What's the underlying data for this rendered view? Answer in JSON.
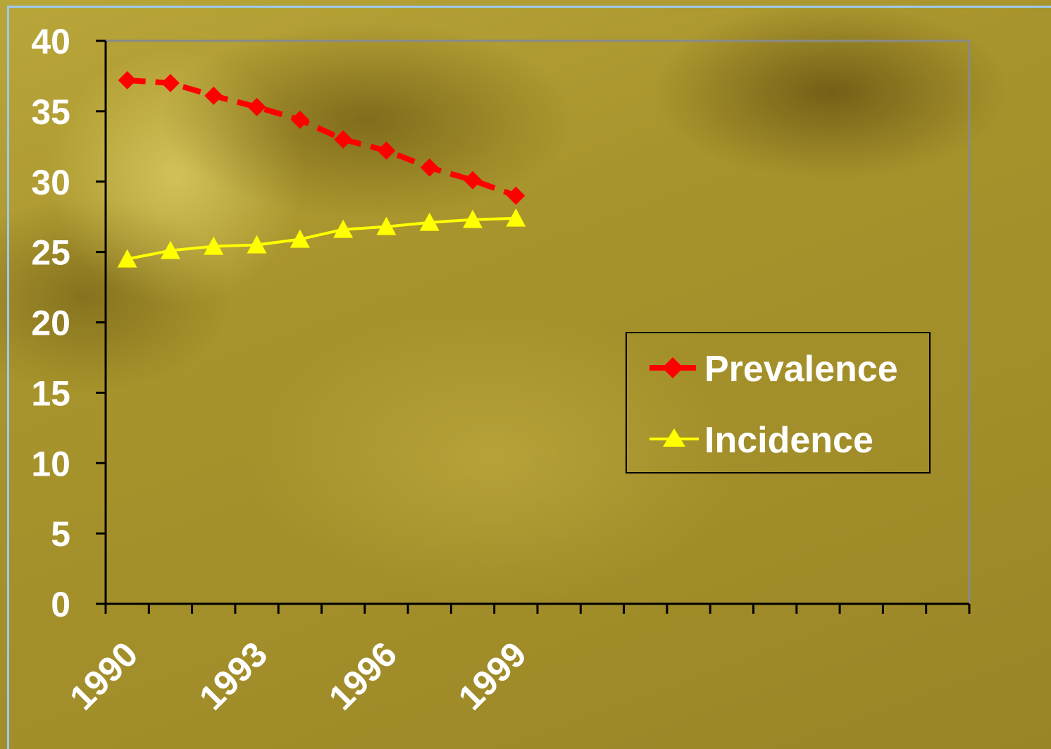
{
  "chart_data": {
    "type": "line",
    "title": "",
    "xlabel": "",
    "ylabel": "",
    "x": [
      1990,
      1991,
      1992,
      1993,
      1994,
      1995,
      1996,
      1997,
      1998,
      1999
    ],
    "x_tick_labels": [
      "1990",
      "1993",
      "1996",
      "1999"
    ],
    "x_tick_values": [
      1990,
      1993,
      1996,
      1999
    ],
    "ylim": [
      0,
      40
    ],
    "y_ticks": [
      "0",
      "5",
      "10",
      "15",
      "20",
      "25",
      "30",
      "35",
      "40"
    ],
    "grid": false,
    "legend_position": "right",
    "series": [
      {
        "name": "Prevalence",
        "color": "#ff0000",
        "style": "dashed",
        "marker": "diamond",
        "values": [
          37.2,
          37.0,
          36.1,
          35.3,
          34.4,
          33.0,
          32.2,
          31.0,
          30.1,
          29.0
        ]
      },
      {
        "name": "Incidence",
        "color": "#ffff00",
        "style": "solid",
        "marker": "triangle",
        "values": [
          24.5,
          25.1,
          25.4,
          25.5,
          25.9,
          26.6,
          26.8,
          27.1,
          27.3,
          27.4
        ]
      }
    ]
  }
}
